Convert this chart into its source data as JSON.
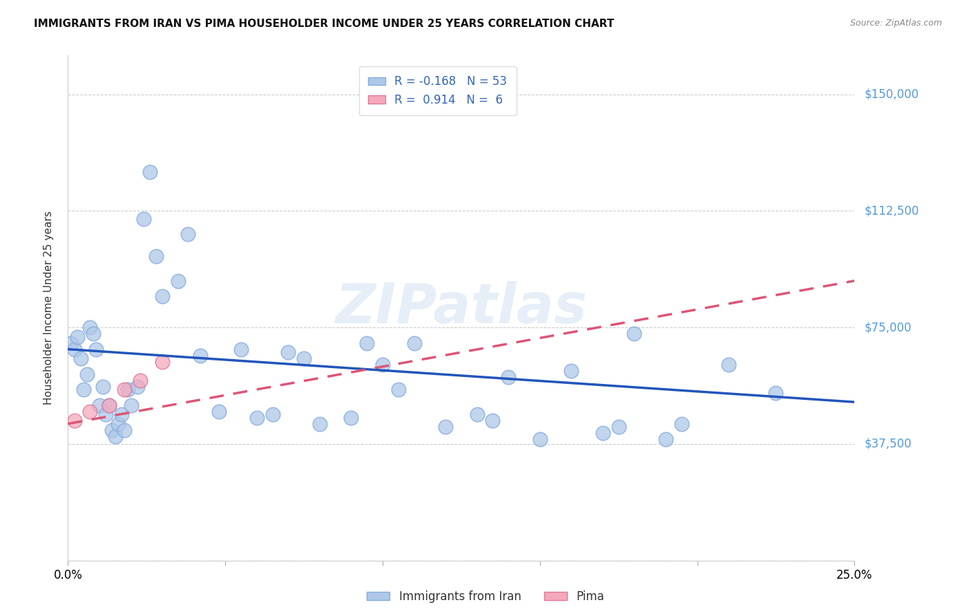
{
  "title": "IMMIGRANTS FROM IRAN VS PIMA HOUSEHOLDER INCOME UNDER 25 YEARS CORRELATION CHART",
  "source": "Source: ZipAtlas.com",
  "ylabel": "Householder Income Under 25 years",
  "xlim": [
    0.0,
    0.25
  ],
  "ylim": [
    0,
    162500
  ],
  "yticks": [
    0,
    37500,
    75000,
    112500,
    150000
  ],
  "ytick_labels": [
    "",
    "$37,500",
    "$75,000",
    "$112,500",
    "$150,000"
  ],
  "xticks": [
    0.0,
    0.05,
    0.1,
    0.15,
    0.2,
    0.25
  ],
  "xtick_labels": [
    "0.0%",
    "",
    "",
    "",
    "",
    "25.0%"
  ],
  "legend_labels": [
    "Immigrants from Iran",
    "Pima"
  ],
  "R_iran": -0.168,
  "N_iran": 53,
  "R_pima": 0.914,
  "N_pima": 6,
  "iran_color": "#adc8e8",
  "pima_color": "#f5a8bc",
  "iran_line_color": "#2255bb",
  "pima_line_color": "#dd5577",
  "watermark": "ZIPatlas",
  "iran_x": [
    0.001,
    0.002,
    0.003,
    0.004,
    0.005,
    0.006,
    0.007,
    0.008,
    0.009,
    0.01,
    0.011,
    0.012,
    0.013,
    0.014,
    0.015,
    0.016,
    0.017,
    0.018,
    0.019,
    0.02,
    0.022,
    0.024,
    0.026,
    0.028,
    0.03,
    0.035,
    0.038,
    0.042,
    0.048,
    0.055,
    0.06,
    0.065,
    0.07,
    0.075,
    0.08,
    0.09,
    0.095,
    0.1,
    0.105,
    0.11,
    0.12,
    0.13,
    0.135,
    0.14,
    0.15,
    0.16,
    0.17,
    0.175,
    0.18,
    0.19,
    0.195,
    0.21,
    0.225
  ],
  "iran_y": [
    70000,
    68000,
    72000,
    65000,
    55000,
    60000,
    75000,
    73000,
    68000,
    50000,
    56000,
    47000,
    50000,
    42000,
    40000,
    44000,
    47000,
    42000,
    55000,
    50000,
    56000,
    110000,
    125000,
    98000,
    85000,
    90000,
    105000,
    66000,
    48000,
    68000,
    46000,
    47000,
    67000,
    65000,
    44000,
    46000,
    70000,
    63000,
    55000,
    70000,
    43000,
    47000,
    45000,
    59000,
    39000,
    61000,
    41000,
    43000,
    73000,
    39000,
    44000,
    63000,
    54000
  ],
  "pima_x": [
    0.002,
    0.007,
    0.013,
    0.018,
    0.023,
    0.03
  ],
  "pima_y": [
    45000,
    48000,
    50000,
    55000,
    58000,
    64000
  ],
  "iran_line_x": [
    0.0,
    0.25
  ],
  "iran_line_y": [
    68000,
    51000
  ],
  "pima_line_x": [
    0.0,
    0.25
  ],
  "pima_line_y": [
    44000,
    90000
  ]
}
